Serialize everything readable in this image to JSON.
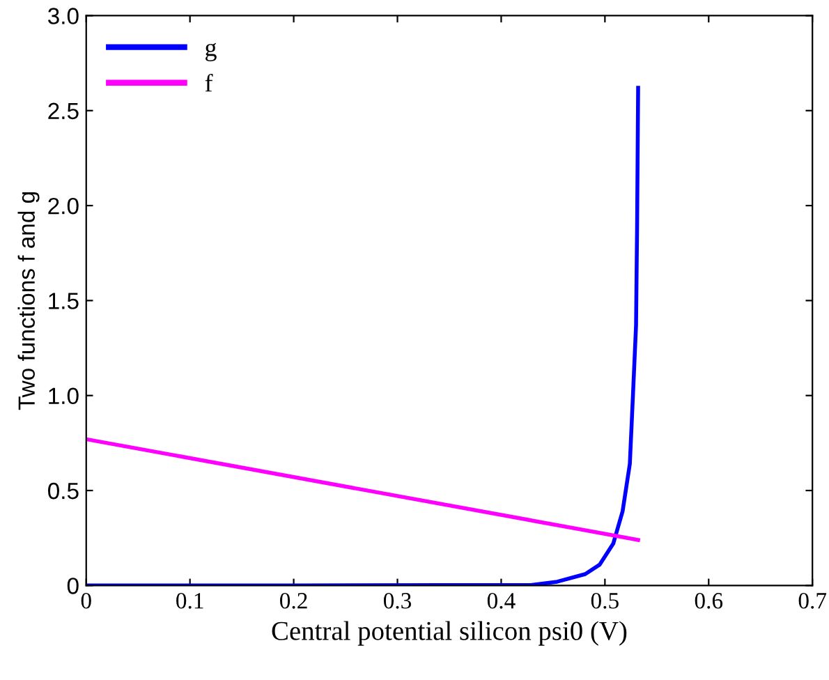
{
  "chart_data": {
    "type": "line",
    "xlabel": "Central potential silicon psi0 (V)",
    "ylabel": "Two functions f and g",
    "series": [
      {
        "name": "g",
        "color": "#0000ff",
        "x": [
          0,
          0.2,
          0.43,
          0.454,
          0.481,
          0.495,
          0.508,
          0.517,
          0.524,
          0.527,
          0.53,
          0.531,
          0.532
        ],
        "values": [
          0,
          0,
          0.003,
          0.02,
          0.06,
          0.11,
          0.22,
          0.39,
          0.64,
          1.0,
          1.37,
          1.89,
          2.62
        ]
      },
      {
        "name": "f",
        "color": "#ff00ff",
        "x": [
          0,
          0.532
        ],
        "values": [
          0.77,
          0.24
        ]
      }
    ],
    "xlim": [
      0,
      0.7
    ],
    "xticks": [
      0,
      0.1,
      0.2,
      0.3,
      0.4,
      0.5,
      0.6,
      0.7
    ],
    "ylim": [
      0,
      3
    ],
    "yticks": [
      0,
      0.5,
      {
        "value": 1,
        "label": "1.0"
      },
      1.5,
      {
        "value": 2,
        "label": "2.0"
      },
      2.5,
      {
        "value": 3,
        "label": "3.0"
      }
    ],
    "legend": "top left",
    "grid": false
  }
}
